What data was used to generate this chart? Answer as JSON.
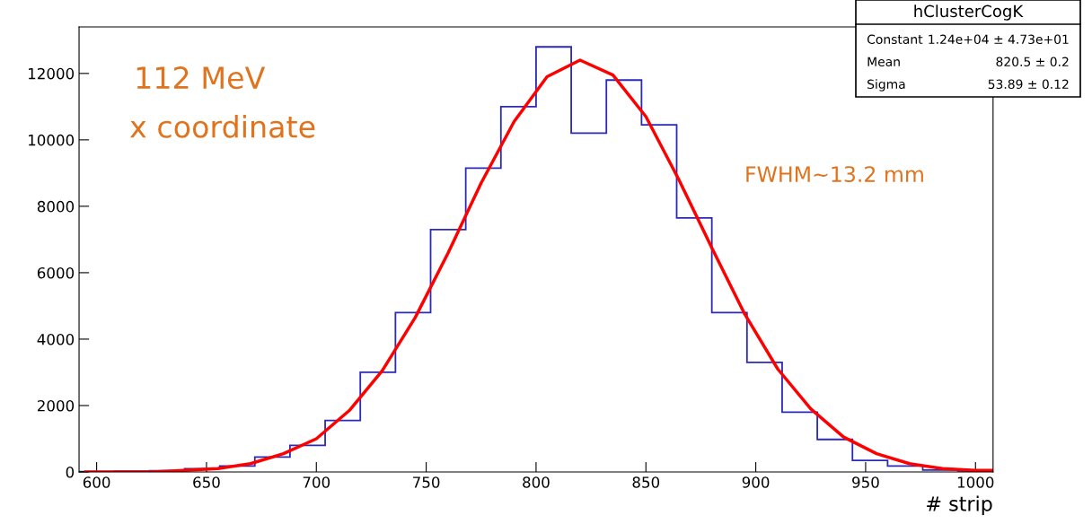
{
  "chart_data": {
    "type": "histogram",
    "title": "hClusterCogK",
    "xlabel": "# strip",
    "bins": [
      592,
      608,
      624,
      640,
      656,
      672,
      688,
      704,
      720,
      736,
      752,
      768,
      784,
      800,
      816,
      832,
      848,
      864,
      880,
      896,
      912,
      928,
      944,
      960,
      976,
      992,
      1008
    ],
    "series": [
      {
        "color": "#2b2bb8",
        "values": [
          10,
          20,
          40,
          100,
          180,
          450,
          800,
          1550,
          3000,
          4800,
          7300,
          9150,
          11000,
          12800,
          10200,
          11800,
          10450,
          7650,
          4800,
          3300,
          1800,
          980,
          350,
          180,
          60,
          30
        ]
      },
      {
        "type": "line",
        "color": "#ff0000",
        "x": [
          595,
          610,
          625,
          640,
          655,
          670,
          685,
          700,
          715,
          730,
          745,
          760,
          775,
          790,
          805,
          820,
          835,
          850,
          865,
          880,
          895,
          910,
          925,
          940,
          955,
          970,
          985,
          1000,
          1008
        ],
        "values": [
          0,
          0,
          0,
          50,
          100,
          250,
          550,
          1000,
          1850,
          3050,
          4650,
          6600,
          8700,
          10550,
          11900,
          12400,
          11950,
          10700,
          8800,
          6750,
          4750,
          3100,
          1900,
          1050,
          550,
          250,
          100,
          50,
          50
        ]
      }
    ],
    "xlim": [
      592,
      1008
    ],
    "xticks": [
      600,
      650,
      700,
      750,
      800,
      850,
      900,
      950,
      1000
    ],
    "ylim": [
      0,
      13400
    ],
    "yticks": [
      0,
      2000,
      4000,
      6000,
      8000,
      10000,
      12000
    ],
    "grid": false,
    "annotations": [
      "Constant  1.24e+04 ± 4.73e+01",
      "Mean  820.5 ± 0.2",
      "Sigma  53.89 ± 0.12",
      "112 MeV",
      "x coordinate",
      "FWHM~13.2 mm"
    ]
  }
}
